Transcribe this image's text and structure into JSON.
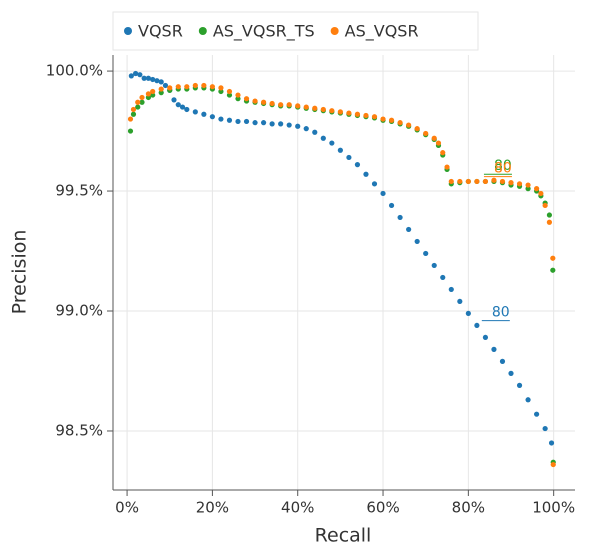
{
  "chart_data": {
    "type": "scatter",
    "x_label": "Recall",
    "y_label": "Precision",
    "xlim": [
      -3.3,
      105
    ],
    "ylim": [
      98.254,
      100.067
    ],
    "xticks": [
      {
        "value": 0,
        "label": "0%"
      },
      {
        "value": 20,
        "label": "20%"
      },
      {
        "value": 40,
        "label": "40%"
      },
      {
        "value": 60,
        "label": "60%"
      },
      {
        "value": 80,
        "label": "80%"
      },
      {
        "value": 100,
        "label": "100%"
      }
    ],
    "yticks": [
      {
        "value": 98.5,
        "label": "98.5%"
      },
      {
        "value": 99.0,
        "label": "99.0%"
      },
      {
        "value": 99.5,
        "label": "99.5%"
      },
      {
        "value": 100.0,
        "label": "100.0%"
      }
    ],
    "grid": true,
    "series": [
      {
        "name": "VQSR",
        "color": "#1f77b4",
        "x": [
          1,
          2,
          3,
          4,
          5,
          6,
          7,
          8,
          9,
          10,
          11,
          12,
          13,
          14,
          16,
          18,
          20,
          22,
          24,
          26,
          28,
          30,
          32,
          34,
          36,
          38,
          40,
          42,
          44,
          46,
          48,
          50,
          52,
          54,
          56,
          58,
          60,
          62,
          64,
          66,
          68,
          70,
          72,
          74,
          76,
          78,
          80,
          82,
          84,
          86,
          88,
          90,
          92,
          94,
          96,
          98,
          99.5
        ],
        "values": [
          99.98,
          99.99,
          99.985,
          99.97,
          99.97,
          99.965,
          99.96,
          99.955,
          99.94,
          99.92,
          99.88,
          99.86,
          99.85,
          99.84,
          99.83,
          99.82,
          99.81,
          99.8,
          99.795,
          99.79,
          99.79,
          99.785,
          99.785,
          99.78,
          99.78,
          99.775,
          99.77,
          99.76,
          99.745,
          99.72,
          99.7,
          99.67,
          99.64,
          99.61,
          99.57,
          99.53,
          99.49,
          99.44,
          99.39,
          99.34,
          99.29,
          99.24,
          99.19,
          99.14,
          99.09,
          99.04,
          98.99,
          98.94,
          98.89,
          98.84,
          98.79,
          98.74,
          98.69,
          98.63,
          98.57,
          98.51,
          98.45
        ]
      },
      {
        "name": "AS_VQSR_TS",
        "color": "#2ca02c",
        "x": [
          0.8,
          1.5,
          2.5,
          3.5,
          5,
          6,
          8,
          10,
          12,
          14,
          16,
          18,
          20,
          22,
          24,
          26,
          28,
          30,
          32,
          34,
          36,
          38,
          40,
          42,
          44,
          46,
          48,
          50,
          52,
          54,
          56,
          58,
          60,
          62,
          64,
          66,
          68,
          70,
          72,
          73,
          74,
          75,
          76,
          78,
          80,
          82,
          84,
          86,
          88,
          90,
          92,
          94,
          96,
          97,
          98,
          99,
          99.8,
          99.9
        ],
        "values": [
          99.75,
          99.82,
          99.85,
          99.87,
          99.89,
          99.9,
          99.91,
          99.92,
          99.925,
          99.925,
          99.93,
          99.93,
          99.925,
          99.915,
          99.9,
          99.885,
          99.875,
          99.87,
          99.865,
          99.86,
          99.855,
          99.855,
          99.85,
          99.845,
          99.84,
          99.835,
          99.83,
          99.825,
          99.82,
          99.815,
          99.81,
          99.805,
          99.795,
          99.79,
          99.78,
          99.77,
          99.755,
          99.735,
          99.715,
          99.69,
          99.65,
          99.59,
          99.53,
          99.535,
          99.54,
          99.54,
          99.54,
          99.54,
          99.535,
          99.525,
          99.52,
          99.51,
          99.5,
          99.48,
          99.45,
          99.4,
          99.17,
          98.37
        ]
      },
      {
        "name": "AS_VQSR",
        "color": "#ff7f0e",
        "x": [
          0.8,
          1.5,
          2.5,
          3.5,
          5,
          6,
          8,
          10,
          12,
          14,
          16,
          18,
          20,
          22,
          24,
          26,
          28,
          30,
          32,
          34,
          36,
          38,
          40,
          42,
          44,
          46,
          48,
          50,
          52,
          54,
          56,
          58,
          60,
          62,
          64,
          66,
          68,
          70,
          72,
          73,
          74,
          75,
          76,
          78,
          80,
          82,
          84,
          86,
          88,
          90,
          92,
          94,
          96,
          97,
          98,
          99,
          99.8,
          99.9
        ],
        "values": [
          99.8,
          99.84,
          99.87,
          99.89,
          99.905,
          99.915,
          99.925,
          99.93,
          99.935,
          99.935,
          99.94,
          99.94,
          99.935,
          99.93,
          99.915,
          99.9,
          99.885,
          99.875,
          99.87,
          99.865,
          99.86,
          99.86,
          99.855,
          99.85,
          99.845,
          99.84,
          99.835,
          99.83,
          99.825,
          99.82,
          99.815,
          99.81,
          99.8,
          99.795,
          99.785,
          99.775,
          99.76,
          99.74,
          99.72,
          99.7,
          99.66,
          99.6,
          99.54,
          99.54,
          99.54,
          99.54,
          99.54,
          99.545,
          99.54,
          99.535,
          99.53,
          99.525,
          99.51,
          99.49,
          99.44,
          99.37,
          99.22,
          98.36
        ]
      }
    ],
    "annotations": [
      {
        "text": "80",
        "x": 85.5,
        "y": 98.96,
        "color": "#1f77b4"
      },
      {
        "text": "80",
        "x": 86,
        "y": 99.57,
        "color": "#2ca02c"
      },
      {
        "text": "80",
        "x": 86,
        "y": 99.56,
        "color": "#ff7f0e"
      }
    ]
  }
}
